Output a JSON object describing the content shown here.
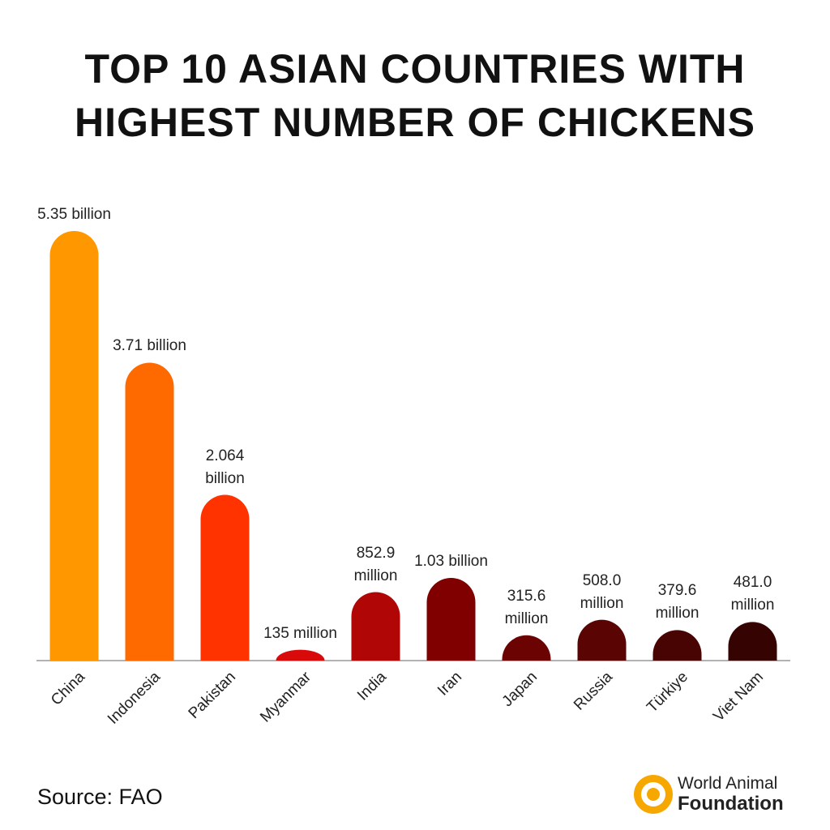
{
  "chart_data": {
    "type": "bar",
    "title": "TOP 10 ASIAN COUNTRIES WITH HIGHEST NUMBER OF CHICKENS",
    "categories": [
      "China",
      "Indonesia",
      "Pakistan",
      "Myanmar",
      "India",
      "Iran",
      "Japan",
      "Russia",
      "Türkiye",
      "Viet Nam"
    ],
    "values": [
      5350,
      3710,
      2064,
      135,
      852.9,
      1030,
      315.6,
      508.0,
      379.6,
      481.0
    ],
    "value_labels": [
      "5.35 billion",
      "3.71 billion",
      "2.064 billion",
      "135 million",
      "852.9 million",
      "1.03 billion",
      "315.6 million",
      "508.0 million",
      "379.6 million",
      "481.0 million"
    ],
    "colors": [
      "#ff9800",
      "#ff6a00",
      "#ff3300",
      "#d90a0a",
      "#b00606",
      "#800000",
      "#6b0303",
      "#5a0404",
      "#480303",
      "#360303"
    ]
  },
  "source": "Source: FAO",
  "logo": {
    "line1": "World Animal",
    "line2": "Foundation"
  }
}
